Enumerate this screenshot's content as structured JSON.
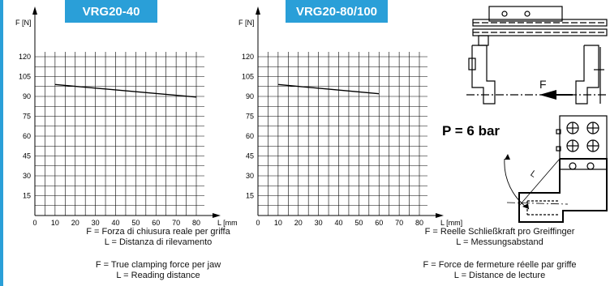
{
  "chart_data": [
    {
      "type": "line",
      "title": "VRG20-40",
      "ylabel": "F [N]",
      "xlabel": "L [mm",
      "x_ticks": [
        0,
        10,
        20,
        30,
        40,
        50,
        60,
        70,
        80
      ],
      "y_ticks": [
        15,
        30,
        45,
        60,
        75,
        90,
        105,
        120
      ],
      "xlim": [
        0,
        80
      ],
      "ylim": [
        0,
        120
      ],
      "grid": true,
      "series": [
        {
          "x": [
            10,
            80
          ],
          "y": [
            99,
            89.5
          ]
        }
      ]
    },
    {
      "type": "line",
      "title": "VRG20-80/100",
      "ylabel": "F [N]",
      "xlabel": "L [mm]",
      "x_ticks": [
        0,
        10,
        20,
        30,
        40,
        50,
        60,
        70,
        80
      ],
      "y_ticks": [
        15,
        30,
        45,
        60,
        75,
        90,
        105,
        120
      ],
      "xlim": [
        0,
        80
      ],
      "ylim": [
        0,
        120
      ],
      "grid": true,
      "series": [
        {
          "x": [
            10,
            60
          ],
          "y": [
            99,
            92
          ]
        }
      ]
    }
  ],
  "pressure_label": "P = 6 bar",
  "diagram_labels": {
    "force": "F",
    "length": "L"
  },
  "captions": {
    "it_f": "F = Forza di chiusura reale per griffa",
    "it_l": "L = Distanza di rilevamento",
    "en_f": "F = True clamping force per jaw",
    "en_l": "L = Reading distance",
    "de_f": "F = Reelle Schließkraft pro Greiffinger",
    "de_l": "L = Messungsabstand",
    "fr_f": "F = Force de fermeture réelle par griffe",
    "fr_l": "L = Distance de lecture"
  },
  "colors": {
    "accent": "#2a9fd8",
    "line": "#000000"
  }
}
